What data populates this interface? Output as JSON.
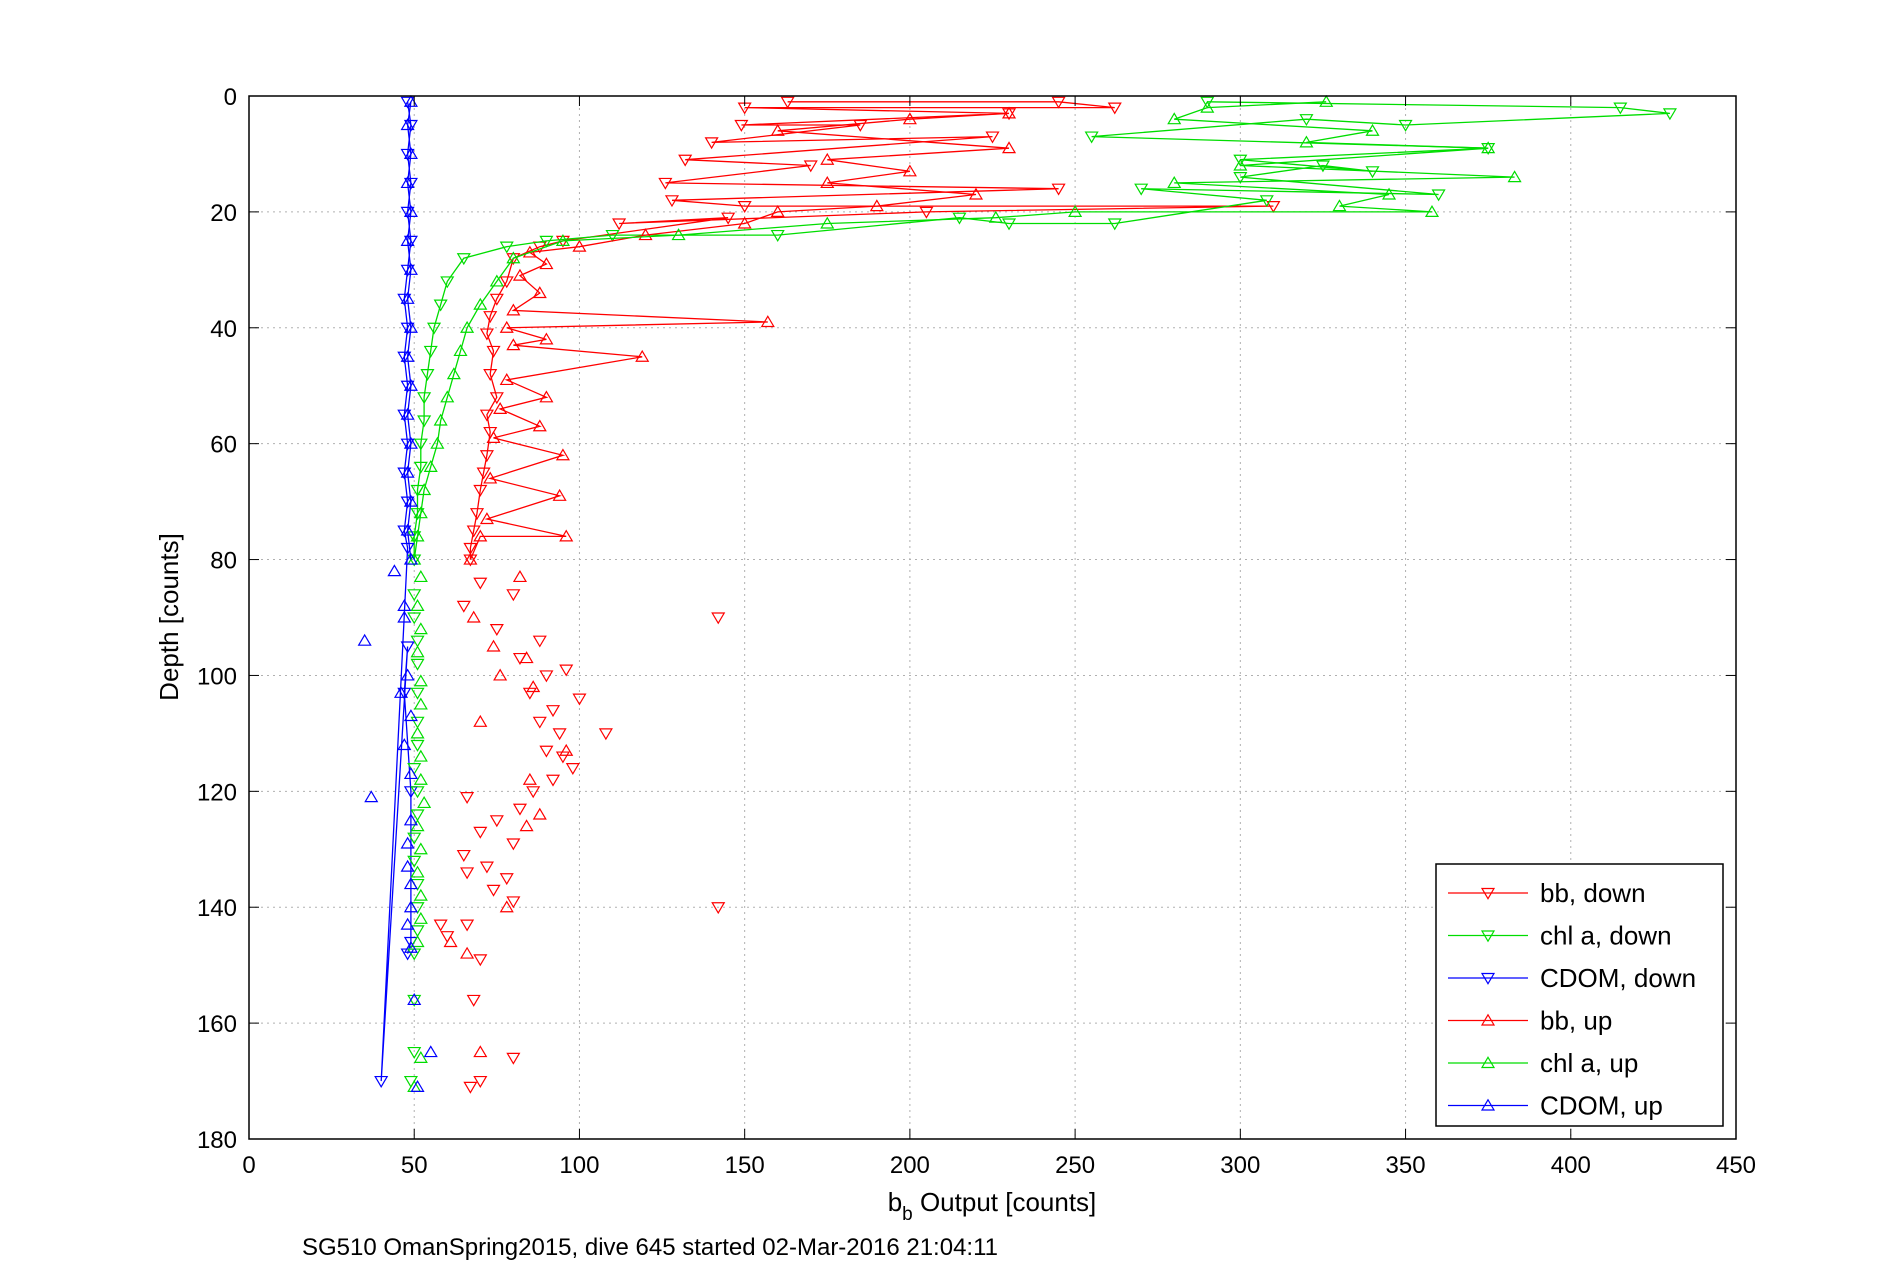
{
  "chart_data": {
    "type": "scatter",
    "xlabel_main": "b",
    "xlabel_sub": "b",
    "xlabel_rest": " Output [counts]",
    "ylabel": "Depth [counts]",
    "footer": "SG510 OmanSpring2015, dive 645 started 02-Mar-2016 21:04:11",
    "xlim": [
      0,
      450
    ],
    "ylim": [
      0,
      180
    ],
    "y_reversed": true,
    "grid": true,
    "legend_position": "bottom-right",
    "xticks": [
      0,
      50,
      100,
      150,
      200,
      250,
      300,
      350,
      400,
      450
    ],
    "yticks": [
      0,
      20,
      40,
      60,
      80,
      100,
      120,
      140,
      160,
      180
    ],
    "xtick_labels": [
      "0",
      "50",
      "100",
      "150",
      "200",
      "250",
      "300",
      "350",
      "400",
      "450"
    ],
    "ytick_labels": [
      "0",
      "20",
      "40",
      "60",
      "80",
      "100",
      "120",
      "140",
      "160",
      "180"
    ],
    "series": [
      {
        "name": "bb, down",
        "color": "#ff0000",
        "marker": "triangle-down",
        "connected": true,
        "points": [
          [
            163,
            1
          ],
          [
            245,
            1
          ],
          [
            262,
            2
          ],
          [
            150,
            2
          ],
          [
            230,
            3
          ],
          [
            149,
            5
          ],
          [
            185,
            5
          ],
          [
            140,
            8
          ],
          [
            225,
            7
          ],
          [
            132,
            11
          ],
          [
            170,
            12
          ],
          [
            126,
            15
          ],
          [
            245,
            16
          ],
          [
            128,
            18
          ],
          [
            150,
            19
          ],
          [
            310,
            19
          ],
          [
            205,
            20
          ],
          [
            112,
            22
          ],
          [
            145,
            21
          ],
          [
            95,
            25
          ],
          [
            88,
            26
          ],
          [
            80,
            28
          ],
          [
            78,
            32
          ],
          [
            75,
            35
          ],
          [
            73,
            38
          ],
          [
            72,
            41
          ],
          [
            74,
            44
          ],
          [
            73,
            48
          ],
          [
            75,
            52
          ],
          [
            72,
            55
          ],
          [
            73,
            58
          ],
          [
            72,
            62
          ],
          [
            71,
            65
          ],
          [
            70,
            68
          ],
          [
            69,
            72
          ],
          [
            68,
            75
          ],
          [
            67,
            78
          ],
          [
            67,
            80
          ]
        ]
      },
      {
        "name": "chl a, down",
        "color": "#00dd00",
        "marker": "triangle-down",
        "connected": true,
        "points": [
          [
            290,
            1
          ],
          [
            415,
            2
          ],
          [
            430,
            3
          ],
          [
            350,
            5
          ],
          [
            320,
            4
          ],
          [
            255,
            7
          ],
          [
            375,
            9
          ],
          [
            300,
            11
          ],
          [
            340,
            13
          ],
          [
            325,
            12
          ],
          [
            300,
            14
          ],
          [
            360,
            17
          ],
          [
            270,
            16
          ],
          [
            308,
            18
          ],
          [
            262,
            22
          ],
          [
            230,
            22
          ],
          [
            215,
            21
          ],
          [
            160,
            24
          ],
          [
            110,
            24
          ],
          [
            90,
            25
          ],
          [
            78,
            26
          ],
          [
            65,
            28
          ],
          [
            60,
            32
          ],
          [
            58,
            36
          ],
          [
            56,
            40
          ],
          [
            55,
            44
          ],
          [
            54,
            48
          ],
          [
            53,
            52
          ],
          [
            53,
            56
          ],
          [
            52,
            60
          ],
          [
            52,
            64
          ],
          [
            51,
            68
          ],
          [
            51,
            72
          ],
          [
            50,
            76
          ],
          [
            50,
            80
          ]
        ]
      },
      {
        "name": "CDOM, down",
        "color": "#0000ff",
        "marker": "triangle-down",
        "connected": true,
        "points": [
          [
            48,
            1
          ],
          [
            49,
            5
          ],
          [
            48,
            10
          ],
          [
            49,
            15
          ],
          [
            48,
            20
          ],
          [
            49,
            25
          ],
          [
            48,
            30
          ],
          [
            47,
            35
          ],
          [
            48,
            40
          ],
          [
            47,
            45
          ],
          [
            48,
            50
          ],
          [
            47,
            55
          ],
          [
            48,
            60
          ],
          [
            47,
            65
          ],
          [
            48,
            70
          ],
          [
            47,
            75
          ],
          [
            48,
            78
          ],
          [
            40,
            170
          ],
          [
            48,
            95
          ],
          [
            47,
            103
          ],
          [
            49,
            120
          ],
          [
            49,
            146
          ],
          [
            48,
            148
          ]
        ]
      },
      {
        "name": "bb, up",
        "color": "#ff0000",
        "marker": "triangle-up",
        "connected": true,
        "points": [
          [
            67,
            80
          ],
          [
            70,
            76
          ],
          [
            96,
            76
          ],
          [
            72,
            73
          ],
          [
            94,
            69
          ],
          [
            73,
            66
          ],
          [
            95,
            62
          ],
          [
            74,
            59
          ],
          [
            88,
            57
          ],
          [
            76,
            54
          ],
          [
            90,
            52
          ],
          [
            78,
            49
          ],
          [
            119,
            45
          ],
          [
            80,
            43
          ],
          [
            90,
            42
          ],
          [
            78,
            40
          ],
          [
            157,
            39
          ],
          [
            80,
            37
          ],
          [
            88,
            34
          ],
          [
            82,
            31
          ],
          [
            90,
            29
          ],
          [
            85,
            27
          ],
          [
            100,
            26
          ],
          [
            120,
            24
          ],
          [
            150,
            22
          ],
          [
            160,
            20
          ],
          [
            190,
            19
          ],
          [
            220,
            17
          ],
          [
            175,
            15
          ],
          [
            200,
            13
          ],
          [
            175,
            11
          ],
          [
            230,
            9
          ],
          [
            160,
            6
          ],
          [
            200,
            4
          ],
          [
            230,
            3
          ]
        ]
      },
      {
        "name": "chl a, up",
        "color": "#00dd00",
        "marker": "triangle-up",
        "connected": true,
        "points": [
          [
            50,
            80
          ],
          [
            51,
            76
          ],
          [
            52,
            72
          ],
          [
            53,
            68
          ],
          [
            55,
            64
          ],
          [
            57,
            60
          ],
          [
            58,
            56
          ],
          [
            60,
            52
          ],
          [
            62,
            48
          ],
          [
            64,
            44
          ],
          [
            66,
            40
          ],
          [
            70,
            36
          ],
          [
            75,
            32
          ],
          [
            80,
            28
          ],
          [
            95,
            25
          ],
          [
            130,
            24
          ],
          [
            175,
            22
          ],
          [
            226,
            21
          ],
          [
            250,
            20
          ],
          [
            358,
            20
          ],
          [
            330,
            19
          ],
          [
            345,
            17
          ],
          [
            280,
            15
          ],
          [
            383,
            14
          ],
          [
            300,
            12
          ],
          [
            375,
            9
          ],
          [
            320,
            8
          ],
          [
            340,
            6
          ],
          [
            280,
            4
          ],
          [
            290,
            2
          ],
          [
            326,
            1
          ]
        ]
      },
      {
        "name": "CDOM, up",
        "color": "#0000ff",
        "marker": "triangle-up",
        "connected": true,
        "points": [
          [
            49,
            80
          ],
          [
            48,
            75
          ],
          [
            49,
            70
          ],
          [
            48,
            65
          ],
          [
            49,
            60
          ],
          [
            48,
            55
          ],
          [
            49,
            50
          ],
          [
            48,
            45
          ],
          [
            49,
            40
          ],
          [
            48,
            35
          ],
          [
            49,
            30
          ],
          [
            48,
            25
          ],
          [
            49,
            20
          ],
          [
            48,
            15
          ],
          [
            49,
            10
          ],
          [
            48,
            5
          ],
          [
            49,
            1
          ]
        ]
      }
    ],
    "scatter_extra": [
      {
        "color": "#ff0000",
        "marker": "triangle-down",
        "points": [
          [
            142,
            90
          ],
          [
            70,
            84
          ],
          [
            80,
            86
          ],
          [
            65,
            88
          ],
          [
            75,
            92
          ],
          [
            88,
            94
          ],
          [
            82,
            97
          ],
          [
            90,
            100
          ],
          [
            96,
            99
          ],
          [
            85,
            103
          ],
          [
            92,
            106
          ],
          [
            100,
            104
          ],
          [
            88,
            108
          ],
          [
            94,
            110
          ],
          [
            108,
            110
          ],
          [
            90,
            113
          ],
          [
            98,
            116
          ],
          [
            92,
            118
          ],
          [
            86,
            120
          ],
          [
            95,
            114
          ],
          [
            66,
            121
          ],
          [
            82,
            123
          ],
          [
            75,
            125
          ],
          [
            70,
            127
          ],
          [
            80,
            129
          ],
          [
            65,
            131
          ],
          [
            72,
            133
          ],
          [
            78,
            135
          ],
          [
            66,
            134
          ],
          [
            74,
            137
          ],
          [
            80,
            139
          ],
          [
            60,
            145
          ],
          [
            66,
            143
          ],
          [
            58,
            143
          ],
          [
            70,
            149
          ],
          [
            68,
            156
          ],
          [
            67,
            171
          ],
          [
            70,
            170
          ],
          [
            80,
            166
          ],
          [
            142,
            140
          ]
        ]
      },
      {
        "color": "#ff0000",
        "marker": "triangle-up",
        "points": [
          [
            70,
            165
          ],
          [
            82,
            83
          ],
          [
            68,
            90
          ],
          [
            74,
            95
          ],
          [
            84,
            97
          ],
          [
            86,
            102
          ],
          [
            70,
            108
          ],
          [
            96,
            113
          ],
          [
            84,
            126
          ],
          [
            88,
            124
          ],
          [
            85,
            118
          ],
          [
            78,
            140
          ],
          [
            61,
            146
          ],
          [
            66,
            148
          ],
          [
            76,
            100
          ]
        ]
      },
      {
        "color": "#00dd00",
        "marker": "triangle-down",
        "points": [
          [
            50,
            86
          ],
          [
            50,
            90
          ],
          [
            51,
            94
          ],
          [
            51,
            98
          ],
          [
            51,
            103
          ],
          [
            51,
            108
          ],
          [
            51,
            112
          ],
          [
            50,
            116
          ],
          [
            51,
            120
          ],
          [
            51,
            124
          ],
          [
            50,
            128
          ],
          [
            50,
            132
          ],
          [
            51,
            136
          ],
          [
            51,
            140
          ],
          [
            51,
            144
          ],
          [
            50,
            148
          ],
          [
            50,
            156
          ],
          [
            50,
            165
          ],
          [
            49,
            170
          ]
        ]
      },
      {
        "color": "#00dd00",
        "marker": "triangle-up",
        "points": [
          [
            52,
            83
          ],
          [
            51,
            88
          ],
          [
            52,
            92
          ],
          [
            51,
            96
          ],
          [
            52,
            101
          ],
          [
            52,
            105
          ],
          [
            51,
            110
          ],
          [
            52,
            114
          ],
          [
            52,
            118
          ],
          [
            53,
            122
          ],
          [
            51,
            126
          ],
          [
            52,
            130
          ],
          [
            51,
            134
          ],
          [
            52,
            138
          ],
          [
            52,
            142
          ],
          [
            51,
            146
          ],
          [
            52,
            166
          ],
          [
            50,
            171
          ]
        ]
      },
      {
        "color": "#0000ff",
        "marker": "triangle-up",
        "points": [
          [
            44,
            82
          ],
          [
            35,
            94
          ],
          [
            48,
            100
          ],
          [
            46,
            103
          ],
          [
            49,
            107
          ],
          [
            47,
            112
          ],
          [
            49,
            117
          ],
          [
            37,
            121
          ],
          [
            49,
            125
          ],
          [
            48,
            129
          ],
          [
            48,
            133
          ],
          [
            49,
            136
          ],
          [
            49,
            140
          ],
          [
            48,
            143
          ],
          [
            49,
            147
          ],
          [
            50,
            156
          ],
          [
            55,
            165
          ],
          [
            51,
            171
          ],
          [
            47,
            88
          ],
          [
            47,
            90
          ]
        ]
      }
    ]
  }
}
